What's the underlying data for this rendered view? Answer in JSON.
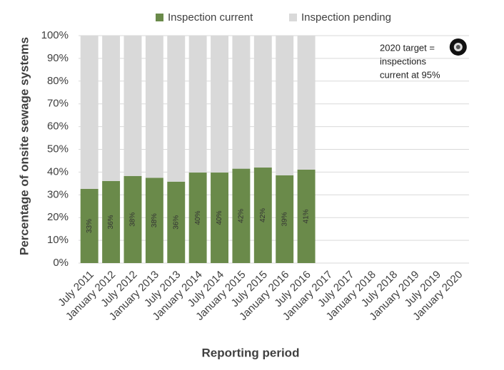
{
  "chart_data": {
    "type": "stacked-bar",
    "x_label": "Reporting period",
    "y_label": "Percentage of onsite sewage systems",
    "categories": [
      "July 2011",
      "January 2012",
      "July 2012",
      "January 2013",
      "July 2013",
      "January 2014",
      "July 2014",
      "January 2015",
      "July 2015",
      "January 2016",
      "July 2016",
      "January 2017",
      "July 2017",
      "January 2018",
      "July 2018",
      "January 2019",
      "July 2019",
      "January 2020"
    ],
    "series": [
      {
        "name": "Inspection current",
        "color": "#6a8a4a",
        "values": [
          32.6,
          36.1,
          38.3,
          37.5,
          35.8,
          39.8,
          39.8,
          41.5,
          42.0,
          38.6,
          41.1,
          null,
          null,
          null,
          null,
          null,
          null,
          null
        ],
        "value_labels": [
          "33%",
          "36%",
          "38%",
          "38%",
          "36%",
          "40%",
          "40%",
          "42%",
          "42%",
          "39%",
          "41%",
          null,
          null,
          null,
          null,
          null,
          null,
          null
        ]
      },
      {
        "name": "Inspection pending",
        "color": "#d9d9d9",
        "values": [
          67.4,
          63.9,
          61.7,
          62.5,
          64.2,
          60.2,
          60.2,
          58.5,
          58.0,
          61.4,
          58.9,
          null,
          null,
          null,
          null,
          null,
          null,
          null
        ]
      }
    ],
    "ylim": [
      0,
      100
    ],
    "yticks": [
      {
        "value": 0,
        "label": "0%"
      },
      {
        "value": 10,
        "label": "10%"
      },
      {
        "value": 20,
        "label": "20%"
      },
      {
        "value": 30,
        "label": "30%"
      },
      {
        "value": 40,
        "label": "40%"
      },
      {
        "value": 50,
        "label": "50%"
      },
      {
        "value": 60,
        "label": "60%"
      },
      {
        "value": 70,
        "label": "70%"
      },
      {
        "value": 80,
        "label": "80%"
      },
      {
        "value": 90,
        "label": "90%"
      },
      {
        "value": 100,
        "label": "100%"
      }
    ],
    "grid": true,
    "target": {
      "category": "January 2020",
      "value": 95,
      "annotation": [
        "2020 target =",
        "inspections",
        "current  at 95%"
      ]
    }
  }
}
